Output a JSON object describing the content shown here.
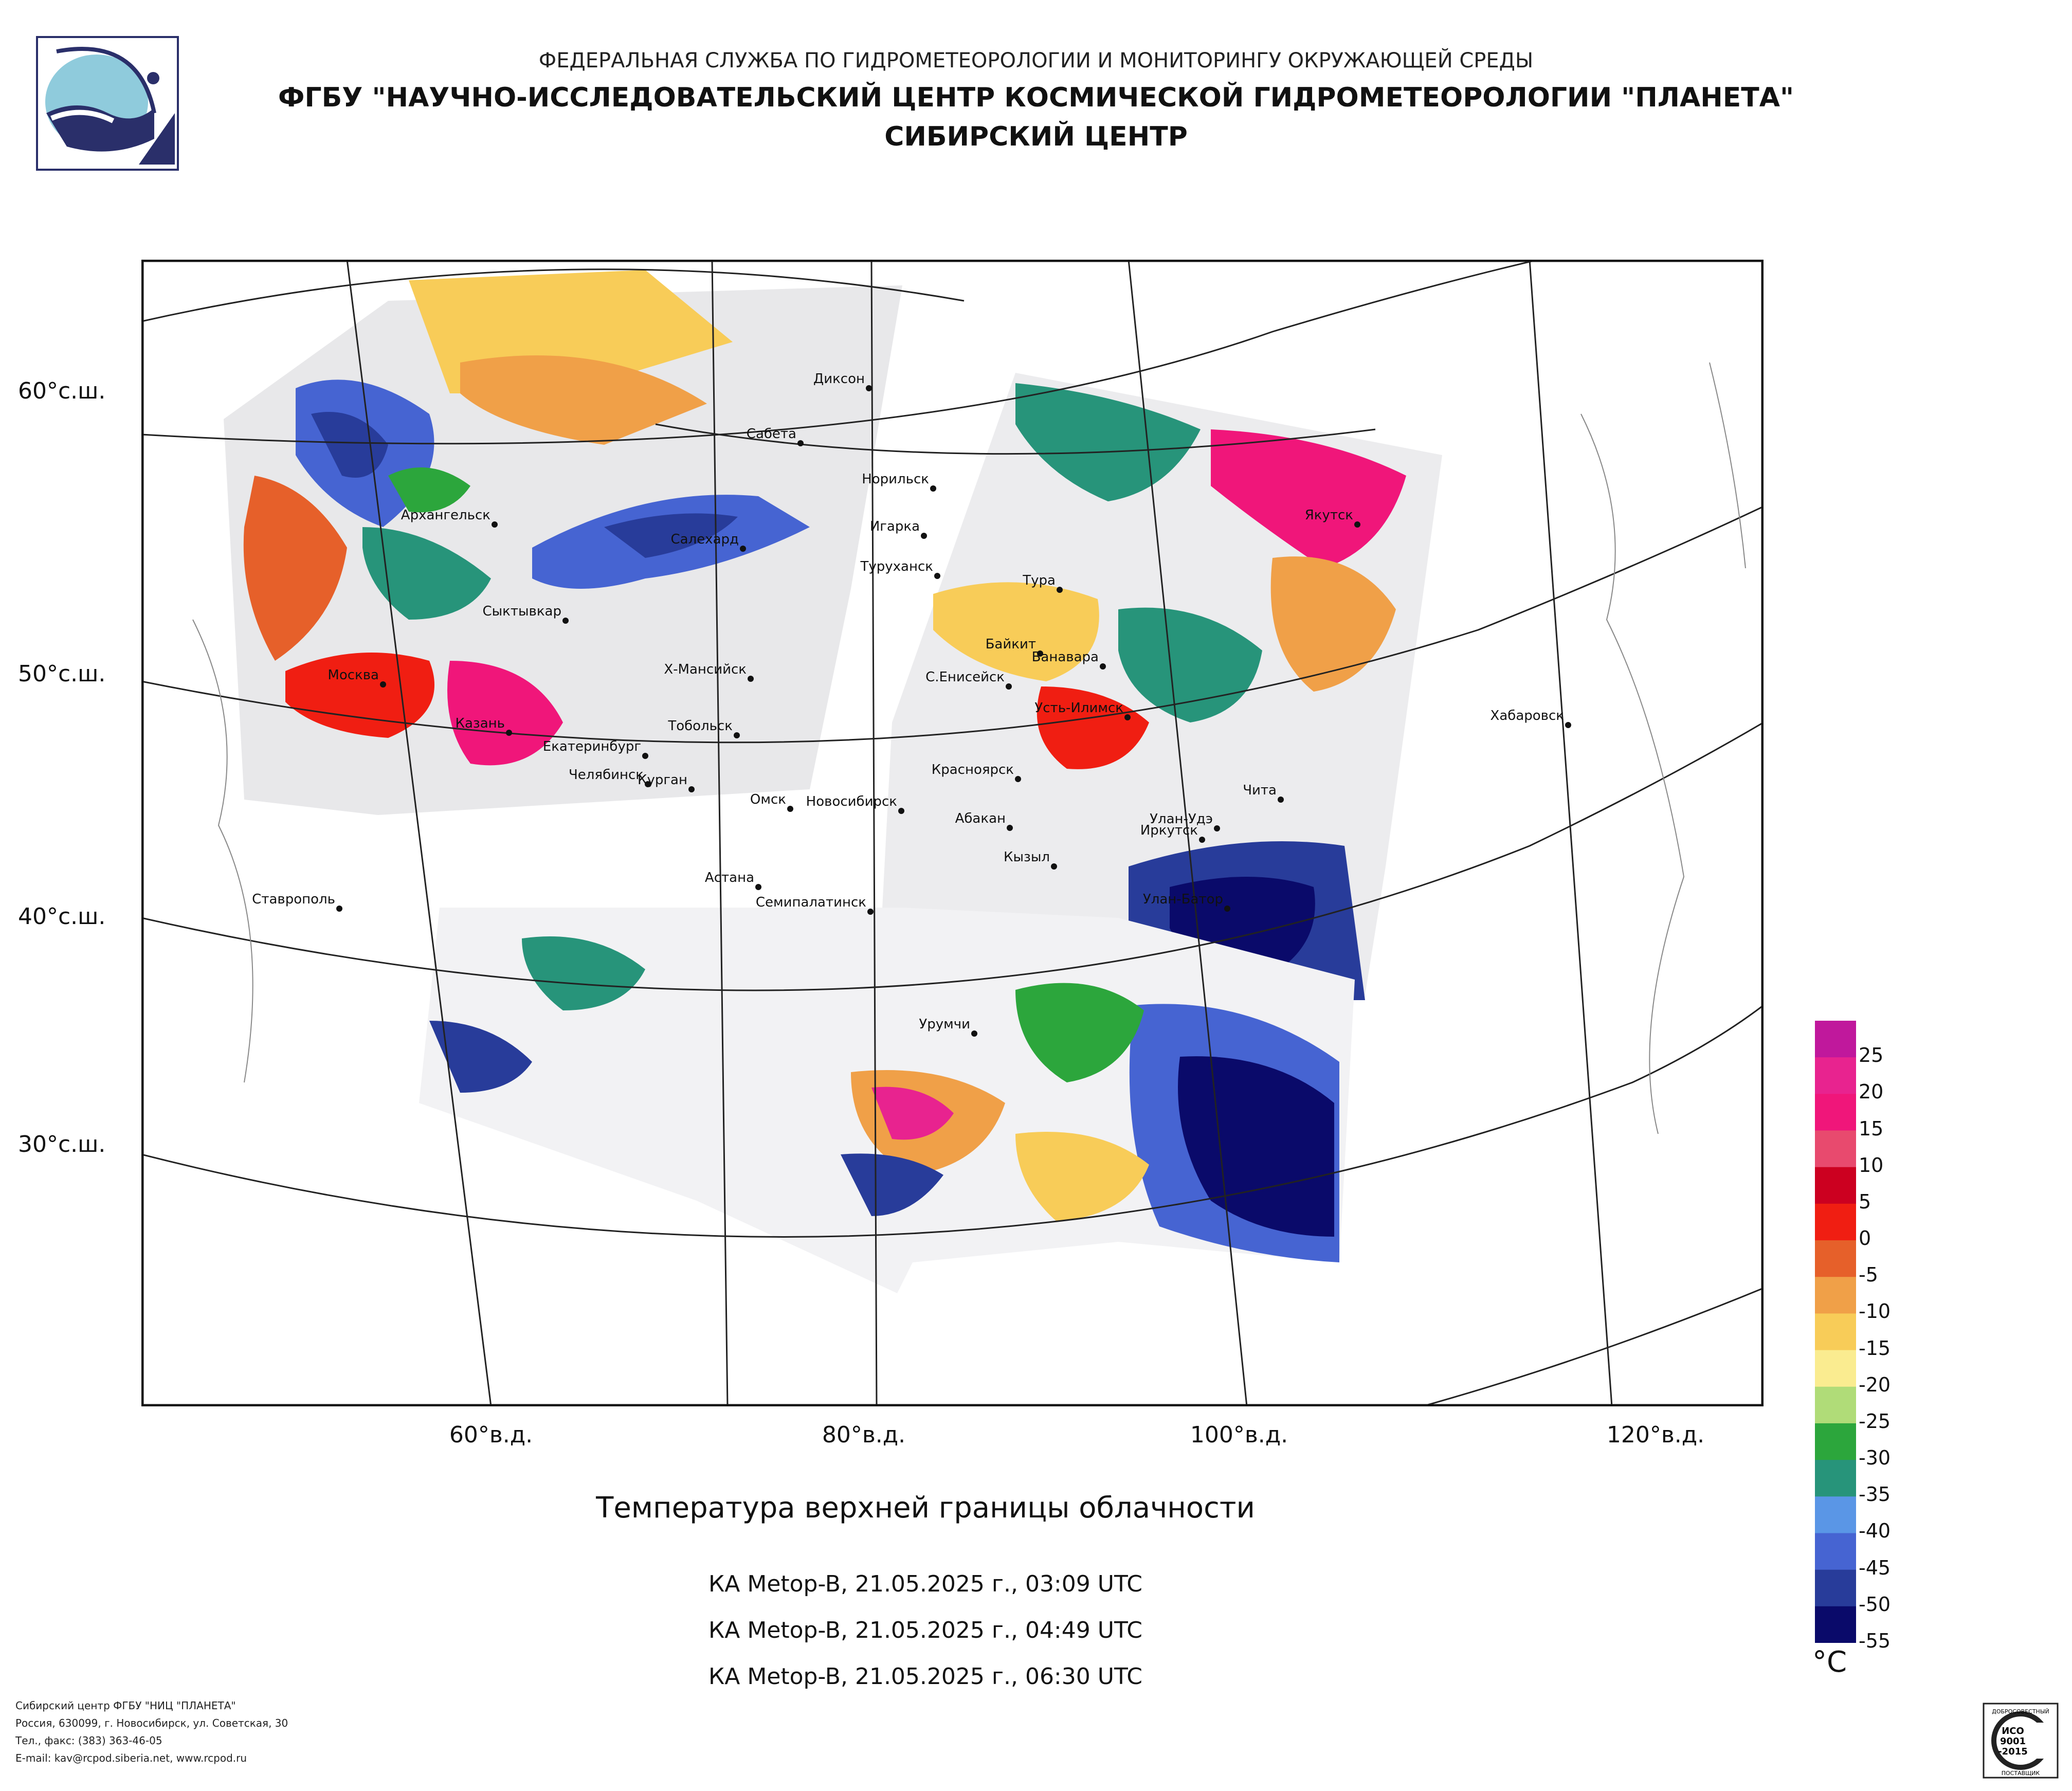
{
  "header": {
    "line1": "ФЕДЕРАЛЬНАЯ СЛУЖБА ПО ГИДРОМЕТЕОРОЛОГИИ И МОНИТОРИНГУ ОКРУЖАЮЩЕЙ СРЕДЫ",
    "line2": "ФГБУ \"НАУЧНО-ИССЛЕДОВАТЕЛЬСКИЙ ЦЕНТР КОСМИЧЕСКОЙ ГИДРОМЕТЕОРОЛОГИИ \"ПЛАНЕТА\"",
    "line3": "СИБИРСКИЙ ЦЕНТР"
  },
  "map": {
    "lat_labels": [
      "60°с.ш.",
      "50°с.ш.",
      "40°с.ш.",
      "30°с.ш."
    ],
    "lon_labels": [
      "60°в.д.",
      "80°в.д.",
      "100°в.д.",
      "120°в.д."
    ],
    "cities": [
      {
        "name": "Диксон"
      },
      {
        "name": "Сабета"
      },
      {
        "name": "Норильск"
      },
      {
        "name": "Игарка"
      },
      {
        "name": "Архангельск"
      },
      {
        "name": "Салехард"
      },
      {
        "name": "Туруханск"
      },
      {
        "name": "Тура"
      },
      {
        "name": "Якутск"
      },
      {
        "name": "Сыктывкар"
      },
      {
        "name": "Байкит"
      },
      {
        "name": "Ванавара"
      },
      {
        "name": "Москва"
      },
      {
        "name": "Х-Мансийск"
      },
      {
        "name": "С.Енисейск"
      },
      {
        "name": "Усть-Илимск"
      },
      {
        "name": "Хабаровск"
      },
      {
        "name": "Казань"
      },
      {
        "name": "Тобольск"
      },
      {
        "name": "Екатеринбург"
      },
      {
        "name": "Челябинск"
      },
      {
        "name": "Курган"
      },
      {
        "name": "Красноярск"
      },
      {
        "name": "Чита"
      },
      {
        "name": "Омск"
      },
      {
        "name": "Новосибирск"
      },
      {
        "name": "Абакан"
      },
      {
        "name": "Улан-Удэ"
      },
      {
        "name": "Иркутск"
      },
      {
        "name": "Кызыл"
      },
      {
        "name": "Астана"
      },
      {
        "name": "Ставрополь"
      },
      {
        "name": "Семипалатинск"
      },
      {
        "name": "Улан-Батор"
      },
      {
        "name": "Урумчи"
      }
    ]
  },
  "title": "Температура верхней границы облачности",
  "passes": [
    "КА Metop-B, 21.05.2025 г., 03:09 UTC",
    "КА Metop-B, 21.05.2025 г., 04:49 UTC",
    "КА Metop-B, 21.05.2025 г., 06:30 UTC"
  ],
  "legend": {
    "unit": "°C",
    "labels": [
      "25",
      "20",
      "15",
      "10",
      "5",
      "0",
      "-5",
      "-10",
      "-15",
      "-20",
      "-25",
      "-30",
      "-35",
      "-40",
      "-45",
      "-50",
      "-55"
    ],
    "colors": [
      "#c0189c",
      "#e8238f",
      "#f0167a",
      "#e84a6e",
      "#cc0020",
      "#f01e12",
      "#e6602a",
      "#f0a048",
      "#f8cc58",
      "#faec90",
      "#b0dc78",
      "#2ca63c",
      "#27947a",
      "#5a96e6",
      "#4664d2",
      "#283c9a",
      "#0a0a6a"
    ]
  },
  "address": {
    "line1": "Сибирский центр ФГБУ \"НИЦ \"ПЛАНЕТА\"",
    "line2": "Россия, 630099, г. Новосибирск, ул. Советская, 30",
    "line3": "Тел., факс: (383) 363-46-05",
    "line4": "E-mail: kav@rcpod.siberia.net, www.rcpod.ru"
  },
  "iso": {
    "top": "ДОБРОСОВЕСТНЫЙ",
    "mid1": "ИСО",
    "mid2": "9001",
    "mid3": "-2015",
    "bottom": "ПОСТАВЩИК"
  }
}
